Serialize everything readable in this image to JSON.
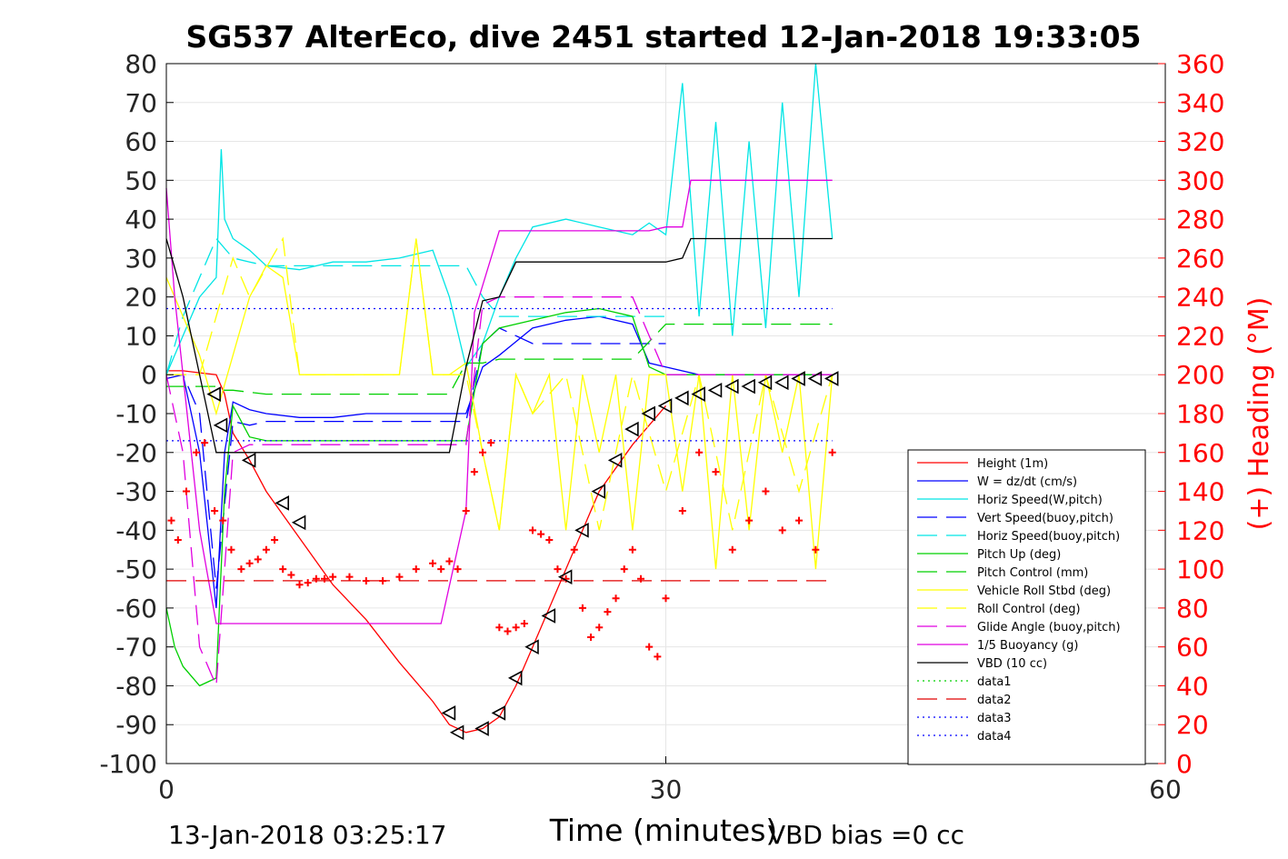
{
  "chart_data": {
    "type": "line",
    "title": "SG537 AlterEco, dive 2451 started 12-Jan-2018 19:33:05",
    "xlabel": "Time (minutes)",
    "ylabel_right": "(+) Heading (°M)",
    "footer_left": "13-Jan-2018 03:25:17",
    "footer_right": "VBD bias =0 cc",
    "xlim": [
      0,
      60
    ],
    "ylim": [
      -100,
      80
    ],
    "ylim_right": [
      0,
      360
    ],
    "x_ticks": [
      "0",
      "30",
      "60"
    ],
    "y_ticks": [
      "80",
      "70",
      "60",
      "50",
      "40",
      "30",
      "20",
      "10",
      "0",
      "-10",
      "-20",
      "-30",
      "-40",
      "-50",
      "-60",
      "-70",
      "-80",
      "-90",
      "-100"
    ],
    "y2_ticks": [
      "360",
      "340",
      "320",
      "300",
      "280",
      "260",
      "240",
      "220",
      "200",
      "180",
      "160",
      "140",
      "120",
      "100",
      "80",
      "60",
      "40",
      "20",
      "0"
    ],
    "grid": true,
    "legend_position": "lower-right",
    "colors": {
      "height": "#ff0000",
      "w": "#0000ff",
      "horiz": "#00e5e5",
      "pitch": "#00d000",
      "roll": "#ffff00",
      "glide": "#e000e0",
      "buoyancy": "#e000e0",
      "vbd": "#000000",
      "heading": "#ff0000",
      "axis_right": "#ff0000"
    },
    "legend": [
      "Height (1m)",
      "W = dz/dt (cm/s)",
      "Horiz Speed(W,pitch)",
      "Vert Speed(buoy,pitch)",
      "Horiz Speed(buoy,pitch)",
      "Pitch Up (deg)",
      "Pitch Control (mm)",
      "Vehicle Roll Stbd (deg)",
      "Roll Control (deg)",
      "Glide Angle (buoy,pitch)",
      "1/5 Buoyancy (g)",
      "VBD (10 cc)",
      "data1",
      "data2",
      "data3",
      "data4"
    ],
    "series": [
      {
        "name": "Height (1m)",
        "x": [
          0,
          1,
          2,
          3,
          3.5,
          4,
          5,
          6,
          8,
          10,
          12,
          14,
          16,
          17,
          18,
          19,
          20,
          21,
          22,
          24,
          26,
          28,
          30
        ],
        "y": [
          1,
          1,
          0.5,
          0,
          -5,
          -15,
          -22,
          -30,
          -42,
          -54,
          -63,
          -74,
          -84,
          -90,
          -92,
          -91,
          -88,
          -80,
          -70,
          -50,
          -30,
          -18,
          -8
        ]
      },
      {
        "name": "W = dz/dt (cm/s)",
        "x": [
          0,
          1,
          2,
          3,
          3.5,
          4,
          5,
          6,
          8,
          10,
          12,
          14,
          16,
          18,
          19,
          20,
          22,
          24,
          26,
          28,
          29,
          30,
          32,
          34,
          36,
          38,
          40
        ],
        "y": [
          -1,
          0,
          -20,
          -60,
          -20,
          -7,
          -9,
          -10,
          -11,
          -11,
          -10,
          -10,
          -10,
          -10,
          2,
          5,
          12,
          14,
          15,
          13,
          3,
          2,
          0,
          0,
          0,
          0,
          0
        ]
      },
      {
        "name": "Horiz Speed(W,pitch)",
        "x": [
          0,
          1,
          2,
          3,
          3.3,
          3.5,
          4,
          5,
          6,
          8,
          10,
          12,
          14,
          16,
          17,
          18,
          19,
          20,
          21,
          22,
          24,
          26,
          28,
          29,
          30,
          31,
          32,
          33,
          34,
          35,
          36,
          37,
          38,
          39,
          40
        ],
        "y": [
          0,
          10,
          20,
          25,
          58,
          40,
          35,
          32,
          28,
          27,
          29,
          29,
          30,
          32,
          20,
          2,
          8,
          20,
          30,
          38,
          40,
          38,
          36,
          39,
          36,
          75,
          15,
          65,
          10,
          60,
          12,
          70,
          20,
          80,
          35
        ]
      },
      {
        "name": "Vert Speed(buoy,pitch)",
        "x": [
          0,
          1,
          2,
          3,
          4,
          5,
          6,
          8,
          10,
          12,
          14,
          16,
          18,
          19,
          20,
          22,
          24,
          26,
          28,
          30
        ],
        "y": [
          0,
          0,
          -10,
          -55,
          -12,
          -13,
          -12,
          -12,
          -12,
          -12,
          -12,
          -12,
          -12,
          8,
          12,
          8,
          8,
          8,
          8,
          8
        ]
      },
      {
        "name": "Horiz Speed(buoy,pitch)",
        "x": [
          0,
          1,
          2,
          3,
          4,
          5,
          6,
          8,
          10,
          12,
          14,
          16,
          18,
          19,
          20,
          22,
          24,
          26,
          28,
          30
        ],
        "y": [
          0,
          15,
          25,
          35,
          30,
          29,
          28,
          28,
          28,
          28,
          28,
          28,
          28,
          20,
          15,
          15,
          15,
          15,
          15,
          15
        ]
      },
      {
        "name": "Pitch Up (deg)",
        "x": [
          0,
          0.5,
          1,
          2,
          3,
          3.5,
          4,
          5,
          6,
          8,
          10,
          12,
          14,
          16,
          18,
          19,
          20,
          22,
          24,
          26,
          28,
          29,
          30,
          32,
          34,
          36,
          38,
          40
        ],
        "y": [
          -60,
          -70,
          -75,
          -80,
          -78,
          -30,
          -8,
          -16,
          -17,
          -17,
          -17,
          -17,
          -17,
          -17,
          -17,
          8,
          12,
          14,
          16,
          17,
          15,
          2,
          0,
          0,
          0,
          0,
          0,
          0
        ]
      },
      {
        "name": "Pitch Control (mm)",
        "x": [
          0,
          2,
          3,
          3.5,
          4,
          6,
          8,
          10,
          12,
          14,
          16,
          17,
          18,
          19,
          20,
          22,
          24,
          26,
          28,
          30,
          34,
          38,
          40
        ],
        "y": [
          -3,
          -3,
          -3,
          -4,
          -4,
          -5,
          -5,
          -5,
          -5,
          -5,
          -5,
          -5,
          3,
          3,
          4,
          4,
          4,
          4,
          4,
          13,
          13,
          13,
          13
        ]
      },
      {
        "name": "Vehicle Roll Stbd (deg)",
        "x": [
          0,
          1,
          2,
          3,
          4,
          5,
          6,
          7,
          8,
          9,
          10,
          12,
          14,
          15,
          16,
          17,
          18,
          19,
          20,
          21,
          22,
          23,
          24,
          25,
          26,
          27,
          28,
          29,
          30,
          31,
          32,
          33,
          34,
          35,
          36,
          37,
          38,
          39,
          40
        ],
        "y": [
          25,
          15,
          5,
          -10,
          5,
          20,
          28,
          25,
          0,
          0,
          0,
          0,
          0,
          35,
          0,
          0,
          3,
          -20,
          -40,
          0,
          -10,
          0,
          -40,
          0,
          -20,
          0,
          -40,
          0,
          0,
          -30,
          0,
          -50,
          0,
          -40,
          0,
          -20,
          0,
          -50,
          0
        ]
      },
      {
        "name": "Roll Control (deg)",
        "x": [
          0,
          2,
          4,
          5,
          7,
          8,
          10,
          14,
          15,
          16,
          17,
          18,
          20,
          21,
          22,
          24,
          26,
          28,
          30,
          32,
          34,
          36,
          38,
          40
        ],
        "y": [
          0,
          0,
          30,
          20,
          35,
          0,
          0,
          0,
          35,
          0,
          0,
          0,
          -40,
          0,
          -10,
          0,
          -40,
          0,
          -30,
          0,
          -40,
          0,
          -30,
          0
        ]
      },
      {
        "name": "Glide Angle (buoy,pitch)",
        "x": [
          0,
          1,
          2,
          3,
          4,
          5,
          6,
          8,
          10,
          12,
          14,
          16,
          18,
          19,
          20,
          22,
          24,
          26,
          28,
          30,
          34,
          38,
          40
        ],
        "y": [
          0,
          -20,
          -70,
          -80,
          -20,
          -18,
          -18,
          -18,
          -18,
          -18,
          -18,
          -18,
          -18,
          18,
          20,
          20,
          20,
          20,
          20,
          0,
          0,
          0,
          0
        ]
      },
      {
        "name": "1/5 Buoyancy (g)",
        "x": [
          0,
          0.5,
          1,
          2,
          3,
          3.5,
          4,
          6,
          8,
          10,
          12,
          14,
          16,
          16.5,
          18,
          18.5,
          20,
          22,
          24,
          26,
          28,
          29,
          30,
          31,
          31.5,
          34,
          38,
          40
        ],
        "y": [
          48,
          20,
          0,
          -40,
          -64,
          -64,
          -64,
          -64,
          -64,
          -64,
          -64,
          -64,
          -64,
          -64,
          -35,
          16,
          37,
          37,
          37,
          37,
          37,
          37,
          38,
          38,
          50,
          50,
          50,
          50
        ]
      },
      {
        "name": "VBD (10 cc)",
        "x": [
          0,
          1,
          2,
          3,
          3.5,
          4,
          6,
          8,
          10,
          12,
          14,
          16,
          17,
          18,
          19,
          20,
          21,
          22,
          24,
          26,
          28,
          29,
          30,
          31,
          31.5,
          34,
          38,
          40
        ],
        "y": [
          35,
          20,
          0,
          -20,
          -20,
          -20,
          -20,
          -20,
          -20,
          -20,
          -20,
          -20,
          -20,
          2,
          19,
          20,
          29,
          29,
          29,
          29,
          29,
          29,
          29,
          30,
          35,
          35,
          35,
          35
        ]
      },
      {
        "name": "data2",
        "x": [
          0,
          40
        ],
        "y": [
          -53,
          -53
        ]
      },
      {
        "name": "data3",
        "x": [
          0,
          40
        ],
        "y": [
          17,
          17
        ]
      },
      {
        "name": "data4",
        "x": [
          0,
          40
        ],
        "y": [
          -17,
          -17
        ]
      }
    ],
    "heading_points": {
      "name": "Heading (°M)",
      "x": [
        0.3,
        0.7,
        1.2,
        1.8,
        2.3,
        2.9,
        3.4,
        3.9,
        4.5,
        5,
        5.5,
        6,
        6.5,
        7,
        7.5,
        8,
        8.5,
        9,
        9.5,
        10,
        11,
        12,
        13,
        14,
        15,
        16,
        16.5,
        17,
        17.5,
        18,
        18.5,
        19,
        19.5,
        20,
        20.5,
        21,
        21.5,
        22,
        22.5,
        23,
        23.5,
        24,
        24.5,
        25,
        25.5,
        26,
        26.5,
        27,
        27.5,
        28,
        28.5,
        29,
        29.5,
        30,
        31,
        32,
        33,
        34,
        35,
        36,
        37,
        38,
        39,
        40
      ],
      "y": [
        125,
        115,
        140,
        160,
        165,
        130,
        125,
        110,
        100,
        103,
        105,
        110,
        115,
        100,
        97,
        92,
        93,
        95,
        95,
        96,
        96,
        94,
        94,
        96,
        100,
        103,
        100,
        104,
        100,
        130,
        150,
        160,
        165,
        70,
        68,
        70,
        72,
        120,
        118,
        115,
        100,
        95,
        110,
        80,
        65,
        70,
        78,
        85,
        100,
        110,
        95,
        60,
        55,
        85,
        130,
        160,
        150,
        110,
        125,
        140,
        120,
        125,
        110,
        160
      ]
    },
    "triangle_markers": {
      "x": [
        2.9,
        3.3,
        5,
        7,
        8,
        17,
        17.5,
        19,
        20,
        21,
        22,
        23,
        24,
        25,
        26,
        27,
        28,
        29,
        30,
        31,
        32,
        33,
        34,
        35,
        36,
        37,
        38,
        39,
        40
      ],
      "y": [
        -5,
        -13,
        -22,
        -33,
        -38,
        -87,
        -92,
        -91,
        -87,
        -78,
        -70,
        -62,
        -52,
        -40,
        -30,
        -22,
        -14,
        -10,
        -8,
        -6,
        -5,
        -4,
        -3,
        -3,
        -2,
        -2,
        -1,
        -1,
        -1
      ]
    }
  }
}
